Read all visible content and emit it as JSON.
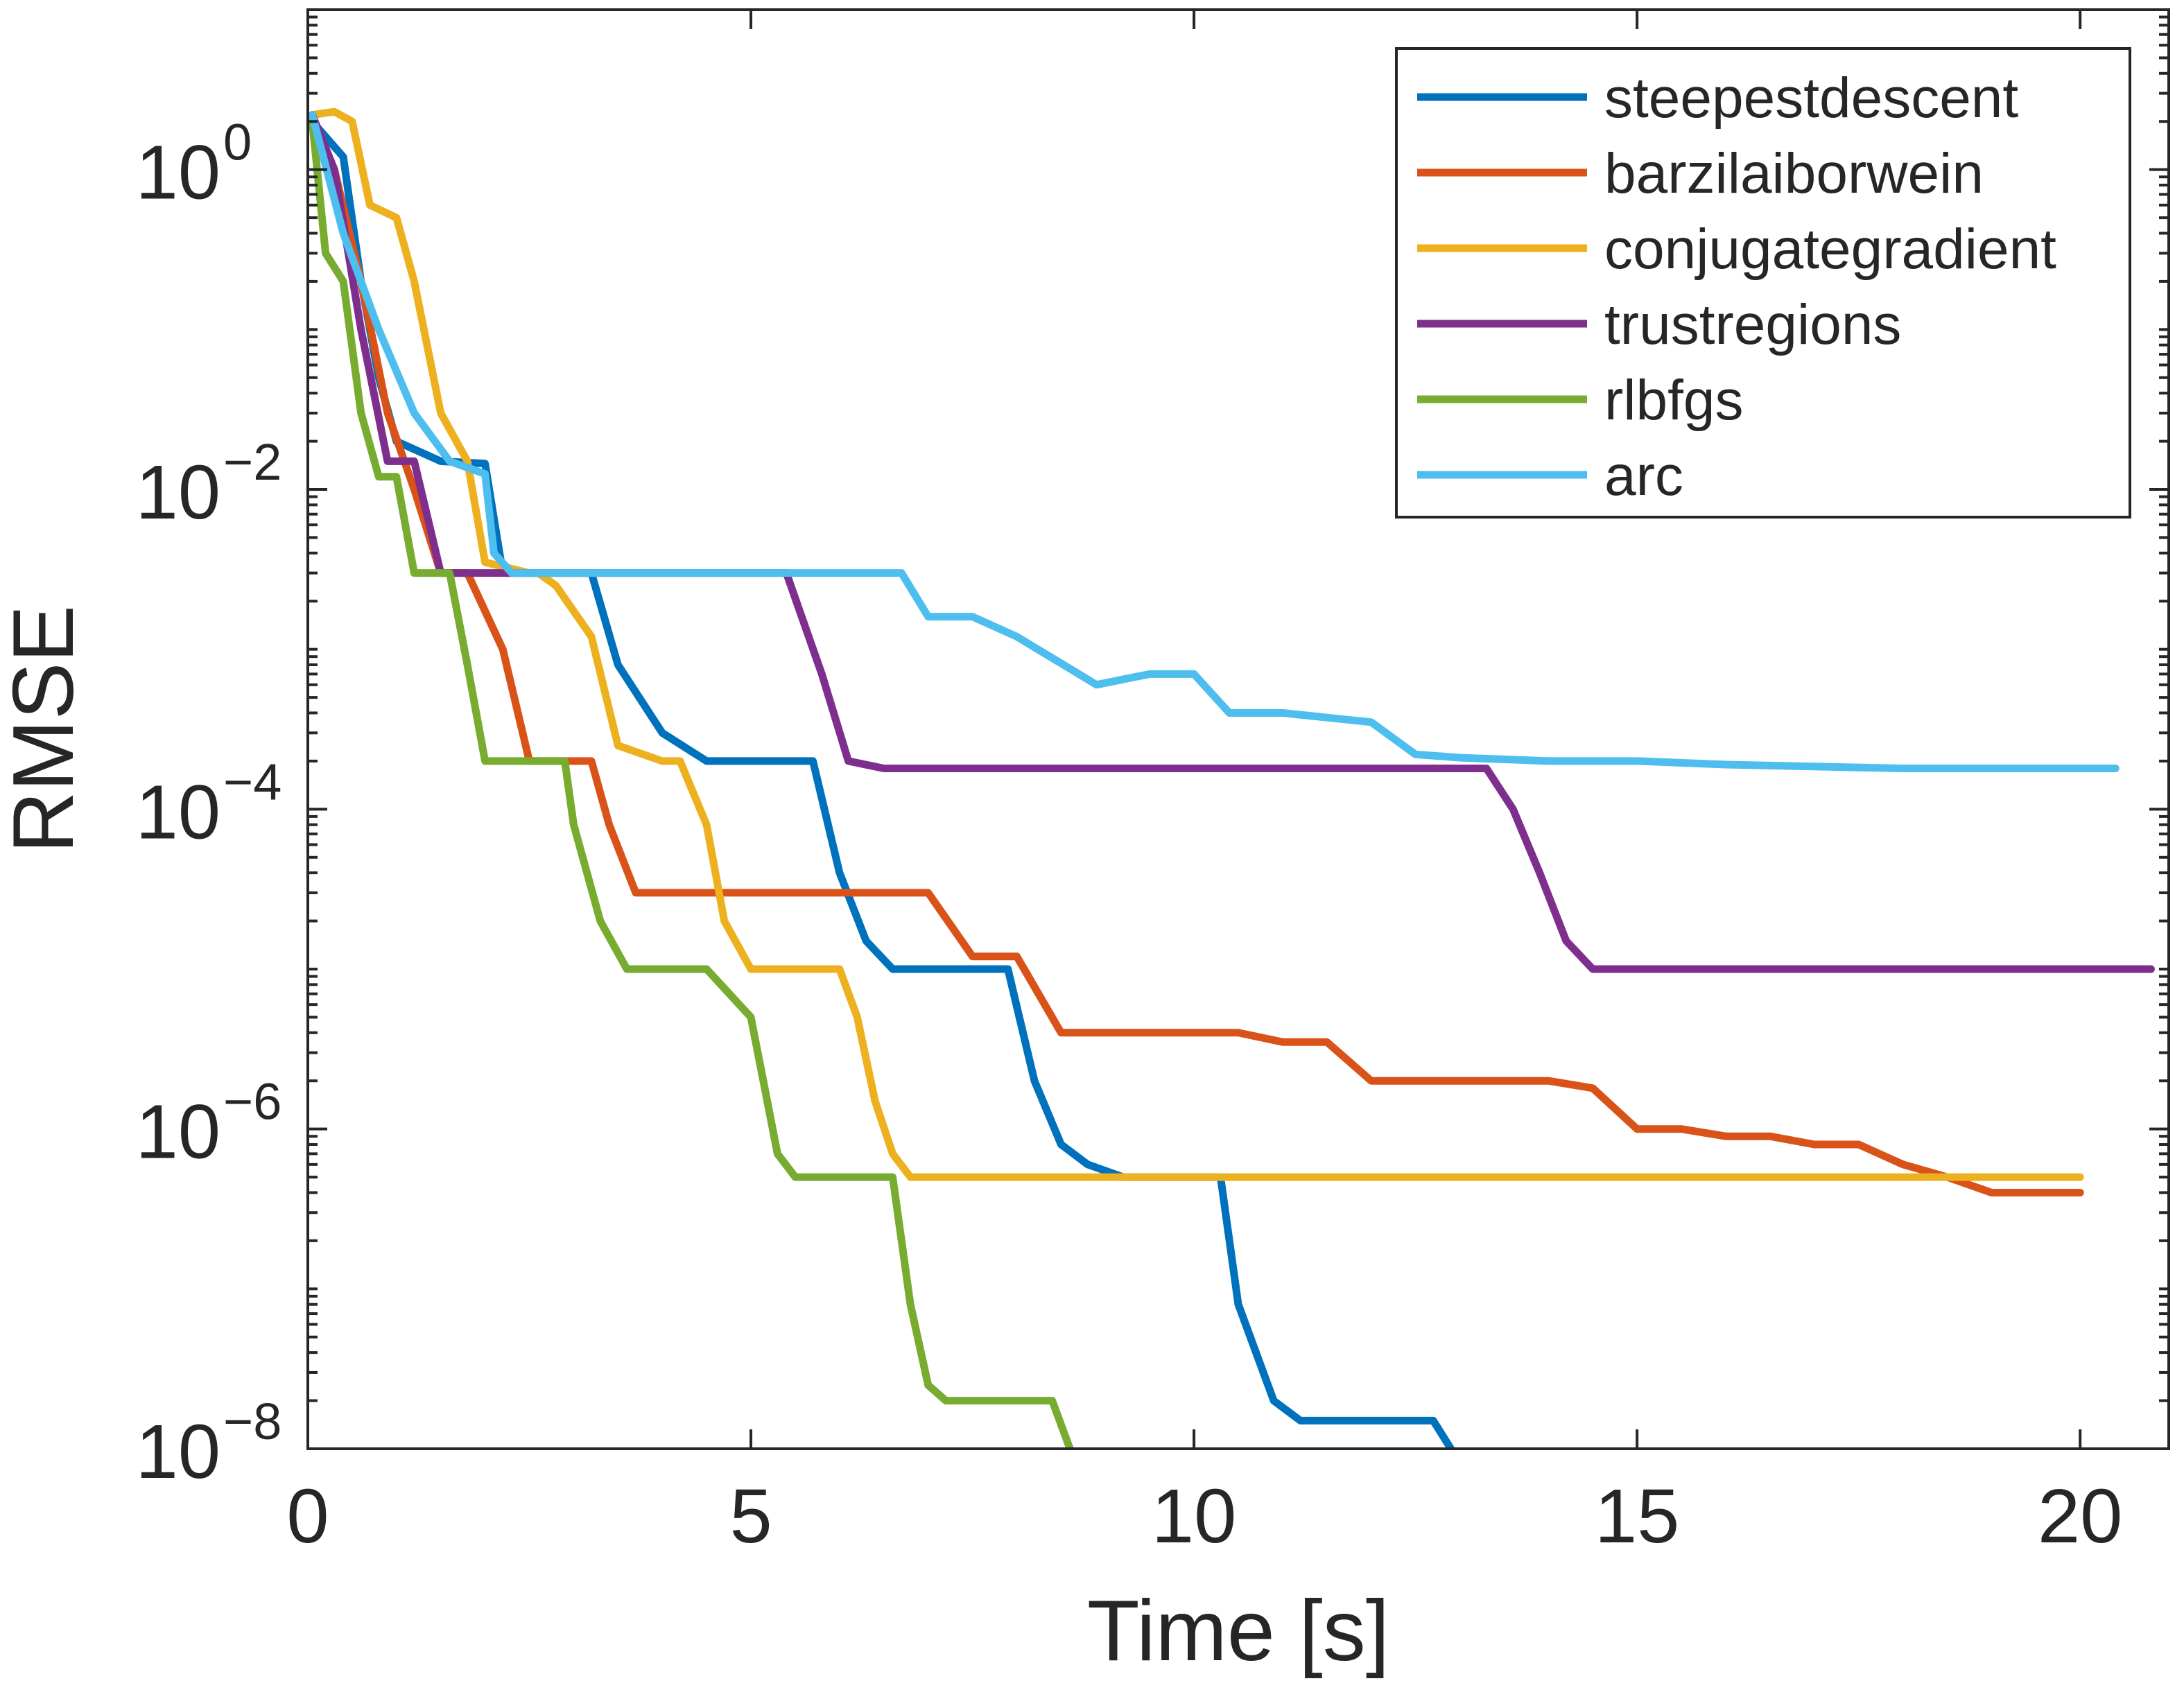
{
  "chart_data": {
    "type": "line",
    "title": "",
    "xlabel": "Time [s]",
    "ylabel": "RMSE",
    "xlim": [
      0,
      21
    ],
    "ylim": [
      1e-08,
      10
    ],
    "yscale": "log",
    "xticks": [
      0,
      5,
      10,
      15,
      20
    ],
    "yticks": [
      {
        "value": 1,
        "base": "10",
        "exp": "0"
      },
      {
        "value": 0.01,
        "base": "10",
        "exp": "−2"
      },
      {
        "value": 0.0001,
        "base": "10",
        "exp": "−4"
      },
      {
        "value": 1e-06,
        "base": "10",
        "exp": "−6"
      },
      {
        "value": 1e-08,
        "base": "10",
        "exp": "−8"
      }
    ],
    "grid": false,
    "legend_position": "top-right",
    "series": [
      {
        "name": "steepestdescent",
        "color": "#0072BD",
        "x": [
          0.05,
          0.4,
          0.6,
          0.8,
          1.0,
          1.5,
          2.0,
          2.2,
          3.2,
          3.5,
          4.0,
          4.5,
          5.0,
          5.7,
          6.0,
          6.3,
          6.6,
          7.2,
          7.9,
          8.2,
          8.5,
          8.8,
          9.2,
          9.6,
          10.3,
          10.5,
          10.9,
          11.2,
          11.5,
          12.0,
          12.7,
          12.9
        ],
        "y": [
          2,
          1.2,
          0.2,
          0.05,
          0.02,
          0.015,
          0.0145,
          0.003,
          0.003,
          0.0008,
          0.0003,
          0.0002,
          0.0002,
          0.0002,
          4e-05,
          1.5e-05,
          1e-05,
          1e-05,
          1e-05,
          2e-06,
          8e-07,
          6e-07,
          5e-07,
          5e-07,
          5e-07,
          8e-08,
          2e-08,
          1.5e-08,
          1.5e-08,
          1.5e-08,
          1.5e-08,
          1e-08
        ]
      },
      {
        "name": "barzilaiborwein",
        "color": "#D95319",
        "x": [
          0.05,
          0.3,
          0.6,
          0.9,
          1.2,
          1.5,
          1.8,
          2.2,
          2.5,
          3.0,
          3.2,
          3.4,
          3.7,
          4.0,
          4.2,
          4.5,
          5.0,
          5.5,
          6.0,
          6.5,
          7.0,
          7.5,
          8.0,
          8.5,
          9.0,
          9.5,
          10.0,
          10.5,
          11.0,
          11.5,
          12.0,
          12.5,
          13.0,
          13.5,
          14.0,
          14.5,
          15.0,
          15.5,
          16.0,
          16.5,
          17.0,
          17.5,
          18.0,
          18.5,
          19.0,
          19.5,
          20.0
        ],
        "y": [
          2,
          1,
          0.2,
          0.03,
          0.01,
          0.003,
          0.003,
          0.001,
          0.0002,
          0.0002,
          0.0002,
          8e-05,
          3e-05,
          3e-05,
          3e-05,
          3e-05,
          3e-05,
          3e-05,
          3e-05,
          3e-05,
          3e-05,
          1.2e-05,
          1.2e-05,
          4e-06,
          4e-06,
          4e-06,
          4e-06,
          4e-06,
          3.5e-06,
          3.5e-06,
          2e-06,
          2e-06,
          2e-06,
          2e-06,
          2e-06,
          1.8e-06,
          1e-06,
          1e-06,
          9e-07,
          9e-07,
          8e-07,
          8e-07,
          6e-07,
          5e-07,
          4e-07,
          4e-07,
          4e-07
        ]
      },
      {
        "name": "conjugategradient",
        "color": "#EDB120",
        "x": [
          0.05,
          0.3,
          0.5,
          0.7,
          1.0,
          1.2,
          1.5,
          1.8,
          2.0,
          2.5,
          2.6,
          2.8,
          3.2,
          3.5,
          4.0,
          4.2,
          4.5,
          4.7,
          5.0,
          5.5,
          6.0,
          6.2,
          6.4,
          6.6,
          6.8,
          7.5,
          10.0,
          15.0,
          20.0
        ],
        "y": [
          2.2,
          2.3,
          2.0,
          0.6,
          0.5,
          0.2,
          0.03,
          0.015,
          0.0035,
          0.003,
          0.003,
          0.0025,
          0.0012,
          0.00025,
          0.0002,
          0.0002,
          8e-05,
          2e-05,
          1e-05,
          1e-05,
          1e-05,
          5e-06,
          1.5e-06,
          7e-07,
          5e-07,
          5e-07,
          5e-07,
          5e-07,
          5e-07
        ]
      },
      {
        "name": "trustregions",
        "color": "#7E2F8E",
        "x": [
          0.05,
          0.3,
          0.6,
          0.9,
          1.2,
          1.5,
          2.0,
          3.0,
          4.0,
          5.0,
          5.4,
          5.8,
          6.1,
          6.5,
          6.8,
          7.0,
          8.0,
          10.0,
          12.0,
          13.3,
          13.6,
          13.9,
          14.2,
          14.5,
          15.0,
          15.4,
          16.0,
          18.0,
          20.0,
          20.8
        ],
        "y": [
          2.2,
          1.0,
          0.1,
          0.015,
          0.015,
          0.003,
          0.003,
          0.003,
          0.003,
          0.003,
          0.003,
          0.0007,
          0.0002,
          0.00018,
          0.00018,
          0.00018,
          0.00018,
          0.00018,
          0.00018,
          0.00018,
          0.0001,
          4e-05,
          1.5e-05,
          1e-05,
          1e-05,
          1e-05,
          1e-05,
          1e-05,
          1e-05,
          1e-05
        ]
      },
      {
        "name": "rlbfgs",
        "color": "#77AC30",
        "x": [
          0.05,
          0.2,
          0.4,
          0.6,
          0.8,
          1.0,
          1.2,
          1.6,
          1.8,
          2.0,
          2.3,
          2.9,
          3.0,
          3.3,
          3.6,
          4.0,
          4.5,
          5.0,
          5.3,
          5.5,
          6.0,
          6.6,
          6.8,
          7.0,
          7.2,
          8.4,
          8.6
        ],
        "y": [
          2,
          0.3,
          0.2,
          0.03,
          0.012,
          0.012,
          0.003,
          0.003,
          0.0008,
          0.0002,
          0.0002,
          0.0002,
          8e-05,
          2e-05,
          1e-05,
          1e-05,
          1e-05,
          5e-06,
          7e-07,
          5e-07,
          5e-07,
          5e-07,
          8e-08,
          2.5e-08,
          2e-08,
          2e-08,
          1e-08
        ]
      },
      {
        "name": "arc",
        "color": "#4DBEEE",
        "x": [
          0.05,
          0.4,
          0.8,
          1.2,
          1.6,
          2.0,
          2.1,
          2.3,
          3.0,
          4.0,
          5.0,
          6.0,
          6.7,
          7.0,
          7.5,
          8.0,
          8.9,
          9.5,
          10.0,
          10.4,
          11.0,
          12.0,
          12.5,
          13.0,
          14.0,
          15.0,
          16.0,
          18.0,
          20.0,
          20.4
        ],
        "y": [
          2.2,
          0.4,
          0.1,
          0.03,
          0.015,
          0.0125,
          0.004,
          0.003,
          0.003,
          0.003,
          0.003,
          0.003,
          0.003,
          0.0016,
          0.0016,
          0.0012,
          0.0006,
          0.0007,
          0.0007,
          0.0004,
          0.0004,
          0.00035,
          0.00022,
          0.00021,
          0.0002,
          0.0002,
          0.00019,
          0.00018,
          0.00018,
          0.00018
        ]
      }
    ]
  }
}
